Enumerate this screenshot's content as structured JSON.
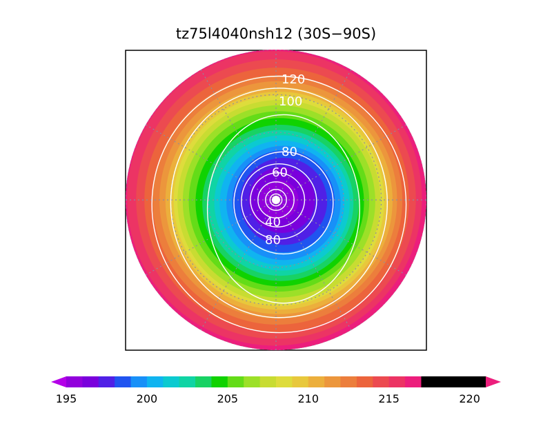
{
  "chart_data": {
    "type": "heatmap",
    "projection": "south-polar-stereographic",
    "title": "tz75l4040nsh12 (30S−90S)",
    "region": "30S−90S",
    "colorbar": {
      "min": 194,
      "max": 221,
      "step": 1,
      "extend": "both",
      "tick_labels": [
        "195",
        "200",
        "205",
        "210",
        "215",
        "220"
      ],
      "tick_values": [
        195,
        200,
        205,
        210,
        215,
        220
      ],
      "colors": [
        "#b400e8",
        "#9200dc",
        "#7a00dc",
        "#5020e6",
        "#2054f0",
        "#1890f8",
        "#10b4f0",
        "#0ccad0",
        "#10d4a4",
        "#18d264",
        "#10d200",
        "#64dc18",
        "#9ce028",
        "#c8dc32",
        "#dedc3c",
        "#e8c83c",
        "#ecaf3c",
        "#ec963c",
        "#ec7e3c",
        "#ec643c",
        "#ec4a50",
        "#ec3464",
        "#ec1e7c"
      ]
    },
    "field_levels": [
      {
        "value": 222,
        "radius": 1.02,
        "cx": 0.0,
        "cy": 0.0
      },
      {
        "value": 216,
        "radius": 0.98,
        "cx": -0.01,
        "cy": -0.01
      },
      {
        "value": 215,
        "radius": 0.93,
        "cx": 0.0,
        "cy": -0.005
      },
      {
        "value": 214,
        "radius": 0.88,
        "cx": 0.005,
        "cy": 0.0
      },
      {
        "value": 213,
        "radius": 0.83,
        "cx": 0.01,
        "cy": 0.0
      },
      {
        "value": 212,
        "radius": 0.79,
        "cx": 0.015,
        "cy": 0.0
      },
      {
        "value": 211,
        "radius": 0.755,
        "cx": 0.02,
        "cy": 0.005
      },
      {
        "value": 210,
        "radius": 0.725,
        "cx": 0.02,
        "cy": 0.005
      },
      {
        "value": 209,
        "radius": 0.7,
        "cx": 0.02,
        "cy": 0.005
      },
      {
        "value": 208,
        "radius": 0.675,
        "cx": 0.02,
        "cy": 0.01
      },
      {
        "value": 207,
        "radius": 0.64,
        "cx": 0.02,
        "cy": 0.01
      },
      {
        "value": 206,
        "radius": 0.6,
        "cx": 0.02,
        "cy": 0.01
      },
      {
        "value": 205,
        "radius": 0.56,
        "cx": 0.025,
        "cy": 0.015
      },
      {
        "value": 204,
        "radius": 0.52,
        "cx": 0.03,
        "cy": 0.02
      },
      {
        "value": 203,
        "radius": 0.485,
        "cx": 0.03,
        "cy": 0.02
      },
      {
        "value": 202,
        "radius": 0.45,
        "cx": 0.04,
        "cy": 0.02
      },
      {
        "value": 201,
        "radius": 0.415,
        "cx": 0.04,
        "cy": 0.02
      },
      {
        "value": 200,
        "radius": 0.38,
        "cx": 0.05,
        "cy": 0.02
      },
      {
        "value": 199,
        "radius": 0.34,
        "cx": 0.05,
        "cy": 0.01
      },
      {
        "value": 198,
        "radius": 0.29,
        "cx": 0.05,
        "cy": 0.01
      },
      {
        "value": 197,
        "radius": 0.22,
        "cx": 0.04,
        "cy": 0.0
      },
      {
        "value": 196,
        "radius": 0.13,
        "cx": 0.02,
        "cy": 0.0
      }
    ],
    "contour_lines": [
      {
        "value": 120,
        "radius": 0.845,
        "cx": 0.02,
        "cy": 0.03,
        "rx_scale": 1.0,
        "ry_scale": 1.01
      },
      {
        "value": 100,
        "radius": 0.72,
        "cx": 0.02,
        "cy": 0.02,
        "rx_scale": 1.0,
        "ry_scale": 1.06
      },
      {
        "value": 90,
        "radius": 0.55,
        "cx": 0.05,
        "cy": 0.06,
        "rx_scale": 0.92,
        "ry_scale": 1.14
      },
      {
        "value": 80,
        "radius": 0.33,
        "cx": 0.05,
        "cy": 0.02,
        "rx_scale": 1.0,
        "ry_scale": 1.03
      },
      {
        "value": 70,
        "radius": 0.25,
        "cx": 0.02,
        "cy": 0.01,
        "rx_scale": 1.0,
        "ry_scale": 1.0
      },
      {
        "value": 60,
        "radius": 0.18,
        "cx": 0.01,
        "cy": 0.0,
        "rx_scale": 1.0,
        "ry_scale": 1.0
      },
      {
        "value": 50,
        "radius": 0.12,
        "cx": 0.0,
        "cy": 0.0,
        "rx_scale": 1.0,
        "ry_scale": 1.0
      },
      {
        "value": 40,
        "radius": 0.07,
        "cx": 0.0,
        "cy": 0.0,
        "rx_scale": 1.0,
        "ry_scale": 1.0
      },
      {
        "value": 30,
        "radius": 0.04,
        "cx": 0.0,
        "cy": 0.0,
        "rx_scale": 1.0,
        "ry_scale": 1.0
      }
    ],
    "contour_labels": [
      "120",
      "100",
      "80",
      "60",
      "40",
      "80"
    ],
    "grid": {
      "meridian_step_deg": 30,
      "latitude_circles": [
        0.45,
        0.7,
        1.0
      ]
    }
  }
}
